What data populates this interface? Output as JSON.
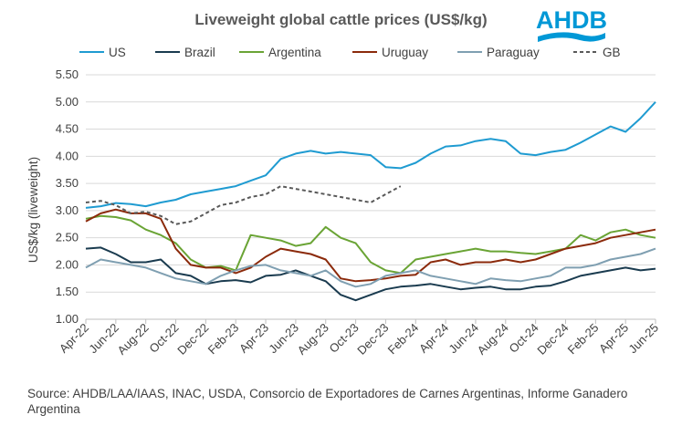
{
  "logo": {
    "text": "AHDB",
    "color": "#0098d6"
  },
  "source_text": "Source: AHDB/LAA/IAAS, INAC, USDA, Consorcio de Exportadores de Carnes Argentinas, Informe Ganadero Argentina",
  "chart_data": {
    "type": "line",
    "title": "Liveweight global cattle prices (US$/kg)",
    "ylabel": "US$/kg (liveweight)",
    "xlabel": "",
    "ylim": [
      1.0,
      5.5
    ],
    "yticks": [
      "1.00",
      "1.50",
      "2.00",
      "2.50",
      "3.00",
      "3.50",
      "4.00",
      "4.50",
      "5.00",
      "5.50"
    ],
    "x_months": [
      "Apr-22",
      "May-22",
      "Jun-22",
      "Jul-22",
      "Aug-22",
      "Sep-22",
      "Oct-22",
      "Nov-22",
      "Dec-22",
      "Jan-23",
      "Feb-23",
      "Mar-23",
      "Apr-23",
      "May-23",
      "Jun-23",
      "Jul-23",
      "Aug-23",
      "Sep-23",
      "Oct-23",
      "Nov-23",
      "Dec-23",
      "Jan-24",
      "Feb-24",
      "Mar-24",
      "Apr-24",
      "May-24",
      "Jun-24",
      "Jul-24",
      "Aug-24",
      "Sep-24",
      "Oct-24",
      "Nov-24",
      "Dec-24",
      "Jan-25",
      "Feb-25",
      "Mar-25",
      "Apr-25",
      "May-25",
      "Jun-25"
    ],
    "xtick_labels": [
      "Apr-22",
      "Jun-22",
      "Aug-22",
      "Oct-22",
      "Dec-22",
      "Feb-23",
      "Apr-23",
      "Jun-23",
      "Aug-23",
      "Oct-23",
      "Dec-23",
      "Feb-24",
      "Apr-24",
      "Jun-24",
      "Aug-24",
      "Oct-24",
      "Dec-24",
      "Feb-25",
      "Apr-25",
      "Jun-25"
    ],
    "legend_position": "top",
    "series": [
      {
        "name": "US",
        "color": "#1f9bd1",
        "dash": false,
        "values": [
          3.05,
          3.08,
          3.14,
          3.12,
          3.08,
          3.15,
          3.2,
          3.3,
          3.35,
          3.4,
          3.45,
          3.55,
          3.65,
          3.95,
          4.05,
          4.1,
          4.05,
          4.08,
          4.05,
          4.02,
          3.8,
          3.78,
          3.88,
          4.05,
          4.18,
          4.2,
          4.28,
          4.32,
          4.28,
          4.05,
          4.02,
          4.08,
          4.12,
          4.25,
          4.4,
          4.55,
          4.45,
          4.7,
          5.0
        ]
      },
      {
        "name": "Brazil",
        "color": "#1a3b4f",
        "dash": false,
        "values": [
          2.3,
          2.32,
          2.2,
          2.05,
          2.05,
          2.1,
          1.85,
          1.8,
          1.65,
          1.7,
          1.72,
          1.68,
          1.8,
          1.82,
          1.9,
          1.8,
          1.7,
          1.45,
          1.35,
          1.45,
          1.55,
          1.6,
          1.62,
          1.65,
          1.6,
          1.55,
          1.58,
          1.6,
          1.55,
          1.55,
          1.6,
          1.62,
          1.7,
          1.8,
          1.85,
          1.9,
          1.95,
          1.9,
          1.93
        ]
      },
      {
        "name": "Argentina",
        "color": "#6aa435",
        "dash": false,
        "values": [
          2.85,
          2.9,
          2.88,
          2.82,
          2.65,
          2.55,
          2.4,
          2.1,
          1.95,
          1.98,
          1.9,
          2.55,
          2.5,
          2.45,
          2.35,
          2.4,
          2.7,
          2.5,
          2.4,
          2.05,
          1.9,
          1.85,
          2.1,
          2.15,
          2.2,
          2.25,
          2.3,
          2.25,
          2.25,
          2.22,
          2.2,
          2.25,
          2.3,
          2.55,
          2.45,
          2.6,
          2.65,
          2.55,
          2.5
        ]
      },
      {
        "name": "Uruguay",
        "color": "#8b2a0b",
        "dash": false,
        "values": [
          2.8,
          2.95,
          3.02,
          2.95,
          2.95,
          2.85,
          2.3,
          2.0,
          1.95,
          1.95,
          1.85,
          1.95,
          2.15,
          2.3,
          2.25,
          2.2,
          2.1,
          1.75,
          1.7,
          1.72,
          1.75,
          1.8,
          1.82,
          2.05,
          2.1,
          2.0,
          2.05,
          2.05,
          2.1,
          2.05,
          2.1,
          2.2,
          2.3,
          2.35,
          2.4,
          2.5,
          2.55,
          2.6,
          2.65
        ]
      },
      {
        "name": "Paraguay",
        "color": "#7f9fb1",
        "dash": false,
        "values": [
          1.95,
          2.1,
          2.05,
          2.0,
          1.95,
          1.85,
          1.75,
          1.7,
          1.65,
          1.8,
          1.9,
          1.98,
          2.0,
          1.9,
          1.85,
          1.8,
          1.9,
          1.7,
          1.6,
          1.65,
          1.8,
          1.85,
          1.9,
          1.8,
          1.75,
          1.7,
          1.65,
          1.75,
          1.72,
          1.7,
          1.75,
          1.8,
          1.95,
          1.95,
          2.0,
          2.1,
          2.15,
          2.2,
          2.3
        ]
      },
      {
        "name": "GB",
        "color": "#595959",
        "dash": true,
        "values": [
          3.15,
          3.18,
          3.1,
          2.95,
          2.98,
          2.9,
          2.75,
          2.8,
          2.95,
          3.1,
          3.15,
          3.25,
          3.3,
          3.45,
          3.4,
          3.35,
          3.3,
          3.25,
          3.2,
          3.15,
          3.3,
          3.45,
          null,
          null,
          null,
          null,
          null,
          null,
          null,
          null,
          null,
          null,
          null,
          null,
          null,
          null,
          null,
          null,
          null
        ]
      }
    ]
  }
}
